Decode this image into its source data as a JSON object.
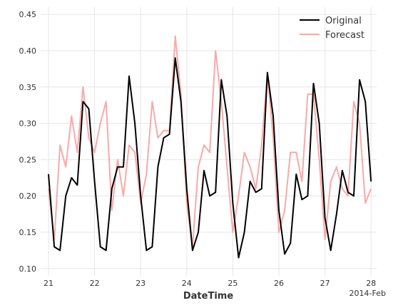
{
  "chart_data": {
    "type": "line",
    "x_label": "DateTime",
    "x_offset_label": "2014-Feb",
    "x": [
      21.0,
      21.125,
      21.25,
      21.375,
      21.5,
      21.625,
      21.75,
      21.875,
      22.0,
      22.125,
      22.25,
      22.375,
      22.5,
      22.625,
      22.75,
      22.875,
      23.0,
      23.125,
      23.25,
      23.375,
      23.5,
      23.625,
      23.75,
      23.875,
      24.0,
      24.125,
      24.25,
      24.375,
      24.5,
      24.625,
      24.75,
      24.875,
      25.0,
      25.125,
      25.25,
      25.375,
      25.5,
      25.625,
      25.75,
      25.875,
      26.0,
      26.125,
      26.25,
      26.375,
      26.5,
      26.625,
      26.75,
      26.875,
      27.0,
      27.125,
      27.25,
      27.375,
      27.5,
      27.625,
      27.75,
      27.875,
      28.0
    ],
    "series": [
      {
        "name": "Original",
        "color": "#000000",
        "values": [
          0.23,
          0.13,
          0.125,
          0.2,
          0.225,
          0.215,
          0.33,
          0.32,
          0.22,
          0.13,
          0.125,
          0.21,
          0.24,
          0.24,
          0.365,
          0.3,
          0.2,
          0.125,
          0.13,
          0.24,
          0.28,
          0.285,
          0.39,
          0.33,
          0.21,
          0.125,
          0.15,
          0.235,
          0.2,
          0.205,
          0.36,
          0.31,
          0.19,
          0.115,
          0.15,
          0.22,
          0.205,
          0.21,
          0.37,
          0.31,
          0.18,
          0.12,
          0.135,
          0.23,
          0.195,
          0.2,
          0.355,
          0.3,
          0.17,
          0.125,
          0.175,
          0.235,
          0.205,
          0.2,
          0.36,
          0.33,
          0.22
        ]
      },
      {
        "name": "Forecast",
        "color": "#f9a9a9",
        "values": [
          0.21,
          0.14,
          0.27,
          0.24,
          0.31,
          0.26,
          0.35,
          0.28,
          0.26,
          0.3,
          0.33,
          0.18,
          0.25,
          0.2,
          0.27,
          0.26,
          0.19,
          0.23,
          0.33,
          0.28,
          0.29,
          0.29,
          0.42,
          0.34,
          0.19,
          0.13,
          0.24,
          0.27,
          0.26,
          0.4,
          0.33,
          0.24,
          0.15,
          0.2,
          0.26,
          0.24,
          0.21,
          0.27,
          0.37,
          0.28,
          0.15,
          0.18,
          0.26,
          0.26,
          0.22,
          0.34,
          0.34,
          0.25,
          0.14,
          0.22,
          0.24,
          0.21,
          0.2,
          0.33,
          0.3,
          0.19,
          0.21
        ]
      }
    ],
    "xlim": [
      20.83,
      28.12
    ],
    "xticks": [
      21,
      22,
      23,
      24,
      25,
      26,
      27,
      28
    ],
    "ylim": [
      0.09,
      0.46
    ],
    "yticks": [
      {
        "value": 0.1,
        "label": "0.10"
      },
      {
        "value": 0.15,
        "label": "0.15"
      },
      {
        "value": 0.2,
        "label": "0.20"
      },
      {
        "value": 0.25,
        "label": "0.25"
      },
      {
        "value": 0.3,
        "label": "0.30"
      },
      {
        "value": 0.35,
        "label": "0.35"
      },
      {
        "value": 0.4,
        "label": "0.40"
      },
      {
        "value": 0.45,
        "label": "0.45"
      }
    ],
    "grid": true,
    "legend": "upper right"
  }
}
